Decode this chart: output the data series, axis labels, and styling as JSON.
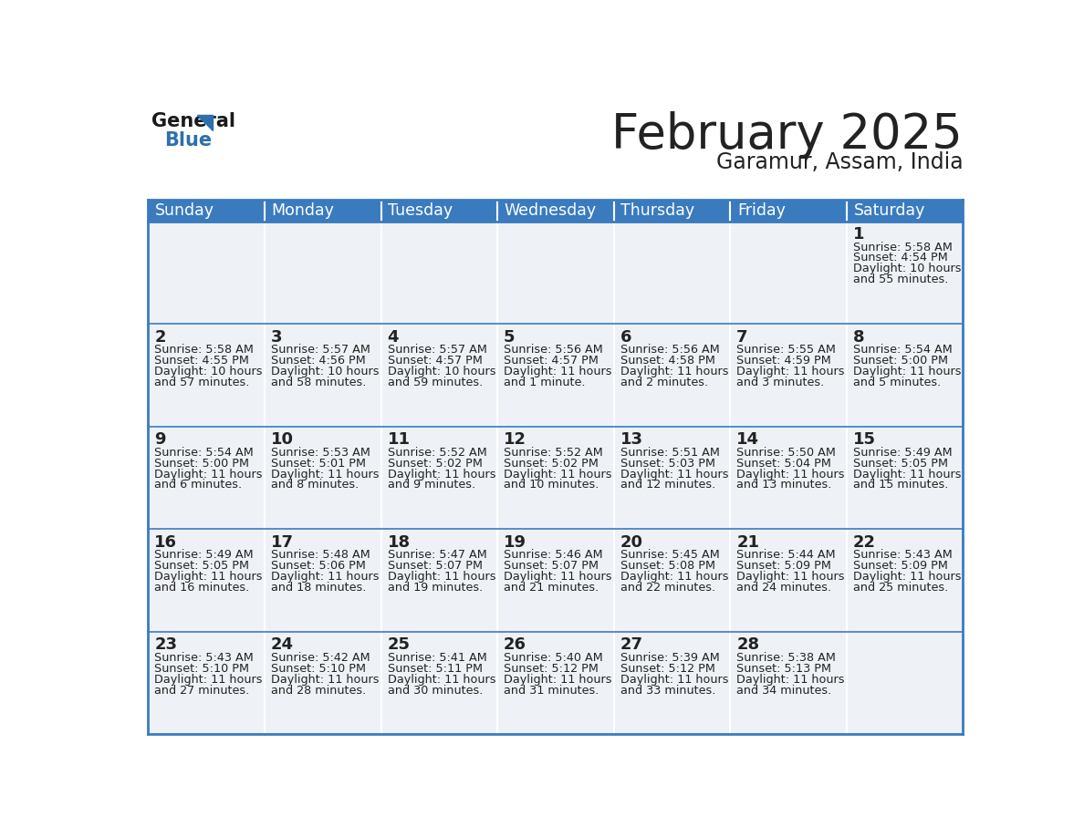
{
  "title": "February 2025",
  "subtitle": "Garamur, Assam, India",
  "header_bg": "#3a7bbf",
  "header_text": "#ffffff",
  "cell_bg_light": "#eef2f7",
  "cell_bg_white": "#ffffff",
  "border_color": "#3a7bbf",
  "text_color": "#222222",
  "days_of_week": [
    "Sunday",
    "Monday",
    "Tuesday",
    "Wednesday",
    "Thursday",
    "Friday",
    "Saturday"
  ],
  "calendar_data": [
    [
      null,
      null,
      null,
      null,
      null,
      null,
      {
        "day": "1",
        "sunrise": "5:58 AM",
        "sunset": "4:54 PM",
        "daylight1": "10 hours",
        "daylight2": "and 55 minutes."
      }
    ],
    [
      {
        "day": "2",
        "sunrise": "5:58 AM",
        "sunset": "4:55 PM",
        "daylight1": "10 hours",
        "daylight2": "and 57 minutes."
      },
      {
        "day": "3",
        "sunrise": "5:57 AM",
        "sunset": "4:56 PM",
        "daylight1": "10 hours",
        "daylight2": "and 58 minutes."
      },
      {
        "day": "4",
        "sunrise": "5:57 AM",
        "sunset": "4:57 PM",
        "daylight1": "10 hours",
        "daylight2": "and 59 minutes."
      },
      {
        "day": "5",
        "sunrise": "5:56 AM",
        "sunset": "4:57 PM",
        "daylight1": "11 hours",
        "daylight2": "and 1 minute."
      },
      {
        "day": "6",
        "sunrise": "5:56 AM",
        "sunset": "4:58 PM",
        "daylight1": "11 hours",
        "daylight2": "and 2 minutes."
      },
      {
        "day": "7",
        "sunrise": "5:55 AM",
        "sunset": "4:59 PM",
        "daylight1": "11 hours",
        "daylight2": "and 3 minutes."
      },
      {
        "day": "8",
        "sunrise": "5:54 AM",
        "sunset": "5:00 PM",
        "daylight1": "11 hours",
        "daylight2": "and 5 minutes."
      }
    ],
    [
      {
        "day": "9",
        "sunrise": "5:54 AM",
        "sunset": "5:00 PM",
        "daylight1": "11 hours",
        "daylight2": "and 6 minutes."
      },
      {
        "day": "10",
        "sunrise": "5:53 AM",
        "sunset": "5:01 PM",
        "daylight1": "11 hours",
        "daylight2": "and 8 minutes."
      },
      {
        "day": "11",
        "sunrise": "5:52 AM",
        "sunset": "5:02 PM",
        "daylight1": "11 hours",
        "daylight2": "and 9 minutes."
      },
      {
        "day": "12",
        "sunrise": "5:52 AM",
        "sunset": "5:02 PM",
        "daylight1": "11 hours",
        "daylight2": "and 10 minutes."
      },
      {
        "day": "13",
        "sunrise": "5:51 AM",
        "sunset": "5:03 PM",
        "daylight1": "11 hours",
        "daylight2": "and 12 minutes."
      },
      {
        "day": "14",
        "sunrise": "5:50 AM",
        "sunset": "5:04 PM",
        "daylight1": "11 hours",
        "daylight2": "and 13 minutes."
      },
      {
        "day": "15",
        "sunrise": "5:49 AM",
        "sunset": "5:05 PM",
        "daylight1": "11 hours",
        "daylight2": "and 15 minutes."
      }
    ],
    [
      {
        "day": "16",
        "sunrise": "5:49 AM",
        "sunset": "5:05 PM",
        "daylight1": "11 hours",
        "daylight2": "and 16 minutes."
      },
      {
        "day": "17",
        "sunrise": "5:48 AM",
        "sunset": "5:06 PM",
        "daylight1": "11 hours",
        "daylight2": "and 18 minutes."
      },
      {
        "day": "18",
        "sunrise": "5:47 AM",
        "sunset": "5:07 PM",
        "daylight1": "11 hours",
        "daylight2": "and 19 minutes."
      },
      {
        "day": "19",
        "sunrise": "5:46 AM",
        "sunset": "5:07 PM",
        "daylight1": "11 hours",
        "daylight2": "and 21 minutes."
      },
      {
        "day": "20",
        "sunrise": "5:45 AM",
        "sunset": "5:08 PM",
        "daylight1": "11 hours",
        "daylight2": "and 22 minutes."
      },
      {
        "day": "21",
        "sunrise": "5:44 AM",
        "sunset": "5:09 PM",
        "daylight1": "11 hours",
        "daylight2": "and 24 minutes."
      },
      {
        "day": "22",
        "sunrise": "5:43 AM",
        "sunset": "5:09 PM",
        "daylight1": "11 hours",
        "daylight2": "and 25 minutes."
      }
    ],
    [
      {
        "day": "23",
        "sunrise": "5:43 AM",
        "sunset": "5:10 PM",
        "daylight1": "11 hours",
        "daylight2": "and 27 minutes."
      },
      {
        "day": "24",
        "sunrise": "5:42 AM",
        "sunset": "5:10 PM",
        "daylight1": "11 hours",
        "daylight2": "and 28 minutes."
      },
      {
        "day": "25",
        "sunrise": "5:41 AM",
        "sunset": "5:11 PM",
        "daylight1": "11 hours",
        "daylight2": "and 30 minutes."
      },
      {
        "day": "26",
        "sunrise": "5:40 AM",
        "sunset": "5:12 PM",
        "daylight1": "11 hours",
        "daylight2": "and 31 minutes."
      },
      {
        "day": "27",
        "sunrise": "5:39 AM",
        "sunset": "5:12 PM",
        "daylight1": "11 hours",
        "daylight2": "and 33 minutes."
      },
      {
        "day": "28",
        "sunrise": "5:38 AM",
        "sunset": "5:13 PM",
        "daylight1": "11 hours",
        "daylight2": "and 34 minutes."
      },
      null
    ]
  ]
}
